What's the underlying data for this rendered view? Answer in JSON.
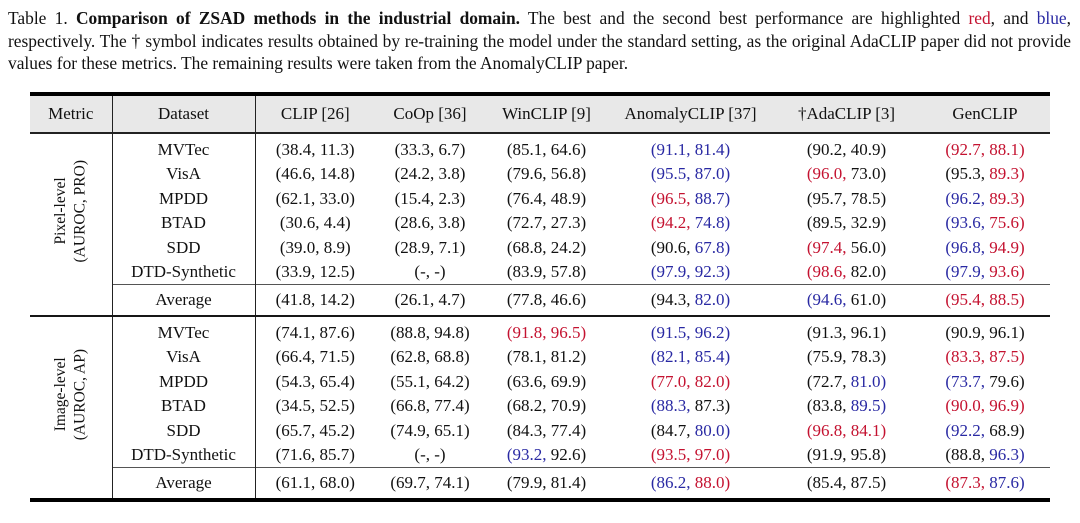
{
  "colors": {
    "red": "#c41230",
    "blue": "#2929a3",
    "black": "#111111",
    "header_bg": "#e8e8e8"
  },
  "caption": {
    "segments": [
      {
        "text": "Table 1. ",
        "bold": false,
        "color": null
      },
      {
        "text": "Comparison of ZSAD methods in the industrial domain.",
        "bold": true,
        "color": null
      },
      {
        "text": " The best and the second best performance are highlighted ",
        "bold": false,
        "color": null
      },
      {
        "text": "red",
        "bold": false,
        "color": "red"
      },
      {
        "text": ", and ",
        "bold": false,
        "color": null
      },
      {
        "text": "blue",
        "bold": false,
        "color": "blue"
      },
      {
        "text": ", respectively. The † symbol indicates results obtained by re-training the model under the standard setting, as the original AdaCLIP paper did not provide values for these metrics. The remaining results were taken from the AnomalyCLIP paper.",
        "bold": false,
        "color": null
      }
    ]
  },
  "table": {
    "columns": [
      "Metric",
      "Dataset",
      "CLIP [26]",
      "CoOp [36]",
      "WinCLIP [9]",
      "AnomalyCLIP [37]",
      "†AdaCLIP [3]",
      "GenCLIP"
    ],
    "average_label": "Average",
    "sections": [
      {
        "metric_lines": [
          "Pixel-level",
          "(AUROC, PRO)"
        ],
        "rows": [
          {
            "dataset": "MVTec",
            "cells": [
              [
                "38.4",
                "k",
                "11.3",
                "k"
              ],
              [
                "33.3",
                "k",
                "6.7",
                "k"
              ],
              [
                "85.1",
                "k",
                "64.6",
                "k"
              ],
              [
                "91.1",
                "b",
                "81.4",
                "b"
              ],
              [
                "90.2",
                "k",
                "40.9",
                "k"
              ],
              [
                "92.7",
                "r",
                "88.1",
                "r"
              ]
            ]
          },
          {
            "dataset": "VisA",
            "cells": [
              [
                "46.6",
                "k",
                "14.8",
                "k"
              ],
              [
                "24.2",
                "k",
                "3.8",
                "k"
              ],
              [
                "79.6",
                "k",
                "56.8",
                "k"
              ],
              [
                "95.5",
                "b",
                "87.0",
                "b"
              ],
              [
                "96.0",
                "r",
                "73.0",
                "k"
              ],
              [
                "95.3",
                "k",
                "89.3",
                "r"
              ]
            ]
          },
          {
            "dataset": "MPDD",
            "cells": [
              [
                "62.1",
                "k",
                "33.0",
                "k"
              ],
              [
                "15.4",
                "k",
                "2.3",
                "k"
              ],
              [
                "76.4",
                "k",
                "48.9",
                "k"
              ],
              [
                "96.5",
                "r",
                "88.7",
                "b"
              ],
              [
                "95.7",
                "k",
                "78.5",
                "k"
              ],
              [
                "96.2",
                "b",
                "89.3",
                "r"
              ]
            ]
          },
          {
            "dataset": "BTAD",
            "cells": [
              [
                "30.6",
                "k",
                "4.4",
                "k"
              ],
              [
                "28.6",
                "k",
                "3.8",
                "k"
              ],
              [
                "72.7",
                "k",
                "27.3",
                "k"
              ],
              [
                "94.2",
                "r",
                "74.8",
                "b"
              ],
              [
                "89.5",
                "k",
                "32.9",
                "k"
              ],
              [
                "93.6",
                "b",
                "75.6",
                "r"
              ]
            ]
          },
          {
            "dataset": "SDD",
            "cells": [
              [
                "39.0",
                "k",
                "8.9",
                "k"
              ],
              [
                "28.9",
                "k",
                "7.1",
                "k"
              ],
              [
                "68.8",
                "k",
                "24.2",
                "k"
              ],
              [
                "90.6",
                "k",
                "67.8",
                "b"
              ],
              [
                "97.4",
                "r",
                "56.0",
                "k"
              ],
              [
                "96.8",
                "b",
                "94.9",
                "r"
              ]
            ]
          },
          {
            "dataset": "DTD-Synthetic",
            "cells": [
              [
                "33.9",
                "k",
                "12.5",
                "k"
              ],
              [
                "-",
                "k",
                "-",
                "k"
              ],
              [
                "83.9",
                "k",
                "57.8",
                "k"
              ],
              [
                "97.9",
                "b",
                "92.3",
                "b"
              ],
              [
                "98.6",
                "r",
                "82.0",
                "k"
              ],
              [
                "97.9",
                "b",
                "93.6",
                "r"
              ]
            ]
          }
        ],
        "average": [
          [
            "41.8",
            "k",
            "14.2",
            "k"
          ],
          [
            "26.1",
            "k",
            "4.7",
            "k"
          ],
          [
            "77.8",
            "k",
            "46.6",
            "k"
          ],
          [
            "94.3",
            "k",
            "82.0",
            "b"
          ],
          [
            "94.6",
            "b",
            "61.0",
            "k"
          ],
          [
            "95.4",
            "r",
            "88.5",
            "r"
          ]
        ]
      },
      {
        "metric_lines": [
          "Image-level",
          "(AUROC, AP)"
        ],
        "rows": [
          {
            "dataset": "MVTec",
            "cells": [
              [
                "74.1",
                "k",
                "87.6",
                "k"
              ],
              [
                "88.8",
                "k",
                "94.8",
                "k"
              ],
              [
                "91.8",
                "r",
                "96.5",
                "r"
              ],
              [
                "91.5",
                "b",
                "96.2",
                "b"
              ],
              [
                "91.3",
                "k",
                "96.1",
                "k"
              ],
              [
                "90.9",
                "k",
                "96.1",
                "k"
              ]
            ]
          },
          {
            "dataset": "VisA",
            "cells": [
              [
                "66.4",
                "k",
                "71.5",
                "k"
              ],
              [
                "62.8",
                "k",
                "68.8",
                "k"
              ],
              [
                "78.1",
                "k",
                "81.2",
                "k"
              ],
              [
                "82.1",
                "b",
                "85.4",
                "b"
              ],
              [
                "75.9",
                "k",
                "78.3",
                "k"
              ],
              [
                "83.3",
                "r",
                "87.5",
                "r"
              ]
            ]
          },
          {
            "dataset": "MPDD",
            "cells": [
              [
                "54.3",
                "k",
                "65.4",
                "k"
              ],
              [
                "55.1",
                "k",
                "64.2",
                "k"
              ],
              [
                "63.6",
                "k",
                "69.9",
                "k"
              ],
              [
                "77.0",
                "r",
                "82.0",
                "r"
              ],
              [
                "72.7",
                "k",
                "81.0",
                "b"
              ],
              [
                "73.7",
                "b",
                "79.6",
                "k"
              ]
            ]
          },
          {
            "dataset": "BTAD",
            "cells": [
              [
                "34.5",
                "k",
                "52.5",
                "k"
              ],
              [
                "66.8",
                "k",
                "77.4",
                "k"
              ],
              [
                "68.2",
                "k",
                "70.9",
                "k"
              ],
              [
                "88.3",
                "b",
                "87.3",
                "k"
              ],
              [
                "83.8",
                "k",
                "89.5",
                "b"
              ],
              [
                "90.0",
                "r",
                "96.9",
                "r"
              ]
            ]
          },
          {
            "dataset": "SDD",
            "cells": [
              [
                "65.7",
                "k",
                "45.2",
                "k"
              ],
              [
                "74.9",
                "k",
                "65.1",
                "k"
              ],
              [
                "84.3",
                "k",
                "77.4",
                "k"
              ],
              [
                "84.7",
                "k",
                "80.0",
                "b"
              ],
              [
                "96.8",
                "r",
                "84.1",
                "r"
              ],
              [
                "92.2",
                "b",
                "68.9",
                "k"
              ]
            ]
          },
          {
            "dataset": "DTD-Synthetic",
            "cells": [
              [
                "71.6",
                "k",
                "85.7",
                "k"
              ],
              [
                "-",
                "k",
                "-",
                "k"
              ],
              [
                "93.2",
                "b",
                "92.6",
                "k"
              ],
              [
                "93.5",
                "r",
                "97.0",
                "r"
              ],
              [
                "91.9",
                "k",
                "95.8",
                "k"
              ],
              [
                "88.8",
                "k",
                "96.3",
                "b"
              ]
            ]
          }
        ],
        "average": [
          [
            "61.1",
            "k",
            "68.0",
            "k"
          ],
          [
            "69.7",
            "k",
            "74.1",
            "k"
          ],
          [
            "79.9",
            "k",
            "81.4",
            "k"
          ],
          [
            "86.2",
            "b",
            "88.0",
            "r"
          ],
          [
            "85.4",
            "k",
            "87.5",
            "k"
          ],
          [
            "87.3",
            "r",
            "87.6",
            "b"
          ]
        ]
      }
    ]
  }
}
